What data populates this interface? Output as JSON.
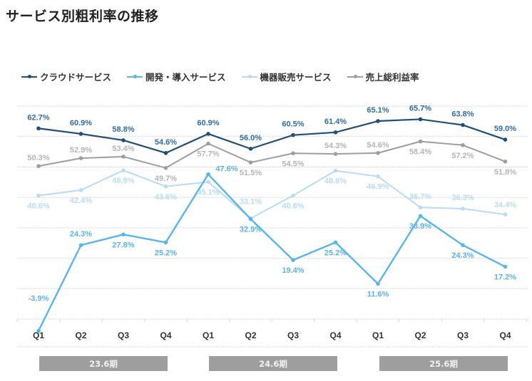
{
  "chart_data": {
    "type": "line",
    "title": "サービス別粗利率の推移",
    "xlabel": "",
    "ylabel": "",
    "ylim": [
      0,
      70
    ],
    "grid": true,
    "legend_position": "top-left",
    "categories": [
      "Q1",
      "Q2",
      "Q3",
      "Q4",
      "Q1",
      "Q2",
      "Q3",
      "Q4",
      "Q1",
      "Q2",
      "Q3",
      "Q4"
    ],
    "period_groups": [
      {
        "label": "23.6期",
        "span": [
          0,
          3
        ]
      },
      {
        "label": "24.6期",
        "span": [
          4,
          7
        ]
      },
      {
        "label": "25.6期",
        "span": [
          8,
          11
        ]
      }
    ],
    "series": [
      {
        "name": "クラウドサービス",
        "color": "#1f4e79",
        "label_color": "#2e6da4",
        "values": [
          62.7,
          60.9,
          58.8,
          54.6,
          60.9,
          56.0,
          60.5,
          61.4,
          65.1,
          65.7,
          63.8,
          59.0
        ]
      },
      {
        "name": "開発・導入サービス",
        "color": "#5ab4ec",
        "label_color": "#5ab4ec",
        "values": [
          -3.9,
          24.3,
          27.8,
          25.2,
          47.6,
          32.9,
          19.4,
          25.2,
          11.6,
          33.9,
          24.3,
          17.2
        ]
      },
      {
        "name": "機器販売サービス",
        "color": "#b7dcf5",
        "label_color": "#b7dcf5",
        "values": [
          40.6,
          42.4,
          48.9,
          43.6,
          45.1,
          33.1,
          40.6,
          48.8,
          46.9,
          36.7,
          36.3,
          34.4
        ]
      },
      {
        "name": "売上総利益率",
        "color": "#9e9e9e",
        "label_color": "#b5b5b5",
        "values": [
          50.3,
          52.9,
          53.4,
          49.7,
          57.7,
          51.5,
          54.5,
          54.3,
          54.6,
          58.4,
          57.2,
          51.8
        ]
      }
    ],
    "data_labels": [
      [
        "62.7%",
        "60.9%",
        "58.8%",
        "54.6%",
        "60.9%",
        "56.0%",
        "60.5%",
        "61.4%",
        "65.1%",
        "65.7%",
        "63.8%",
        "59.0%"
      ],
      [
        "-3.9%",
        "24.3%",
        "27.8%",
        "25.2%",
        "47.6%",
        "32.9%",
        "19.4%",
        "25.2%",
        "11.6%",
        "33.9%",
        "24.3%",
        "17.2%"
      ],
      [
        "40.6%",
        "42.4%",
        "48.9%",
        "43.6%",
        "45.1%",
        "33.1%",
        "40.6%",
        "48.8%",
        "46.9%",
        "36.7%",
        "36.3%",
        "34.4%"
      ],
      [
        "50.3%",
        "52.9%",
        "53.4%",
        "49.7%",
        "57.7%",
        "51.5%",
        "54.5%",
        "54.3%",
        "54.6%",
        "58.4%",
        "57.2%",
        "51.8%"
      ]
    ]
  }
}
